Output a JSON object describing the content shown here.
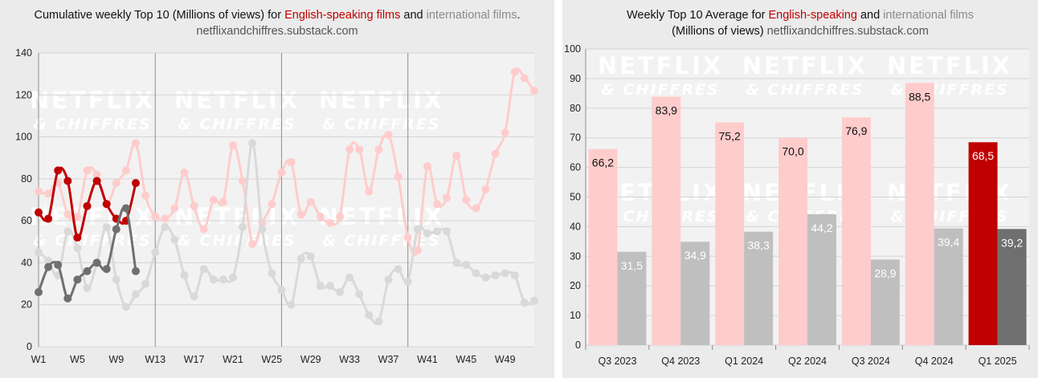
{
  "colors": {
    "english_light": "#ffcccc",
    "english_dark": "#c00000",
    "intl_light": "#d9d9d9",
    "intl_dark": "#6f6f6f",
    "plot_bg": "#f2f2f2",
    "panel_bg": "#ebebeb"
  },
  "watermark": {
    "line1": "NETFLIX",
    "line2": "& CHIFFRES"
  },
  "left": {
    "title_prefix": "Cumulative weekly Top 10 (Millions of views) for ",
    "title_red": "English-speaking films",
    "title_and": " and ",
    "title_grey": "international films",
    "title_suffix": ".",
    "source": "netflixandchiffres.substack.com"
  },
  "right": {
    "title_prefix": "Weekly Top 10 Average for ",
    "title_red": "English-speaking",
    "title_and": " and ",
    "title_grey": "international films",
    "title_unit": "(Millions of views) ",
    "source": "netflixandchiffres.substack.com"
  },
  "chart_data": [
    {
      "type": "line",
      "x_tick_labels": [
        "W1",
        "W5",
        "W9",
        "W13",
        "W17",
        "W21",
        "W25",
        "W29",
        "W33",
        "W37",
        "W41",
        "W45",
        "W49"
      ],
      "x_tick_weeks": [
        1,
        5,
        9,
        13,
        17,
        21,
        25,
        29,
        33,
        37,
        41,
        45,
        49
      ],
      "xlim": [
        1,
        52
      ],
      "ylim": [
        0,
        140
      ],
      "y_ticks": [
        0,
        20,
        40,
        60,
        80,
        100,
        120,
        140
      ],
      "grid": true,
      "quarter_dividers_at_weeks": [
        13,
        26,
        39
      ],
      "series": [
        {
          "key": "english_2024",
          "style": "light_red",
          "x": [
            1,
            2,
            3,
            4,
            5,
            6,
            7,
            8,
            9,
            10,
            11,
            12,
            13,
            14,
            15,
            16,
            17,
            18,
            19,
            20,
            21,
            22,
            23,
            24,
            25,
            26,
            27,
            28,
            29,
            30,
            31,
            32,
            33,
            34,
            35,
            36,
            37,
            38,
            39,
            40,
            41,
            42,
            43,
            44,
            45,
            46,
            47,
            48,
            49,
            50,
            51,
            52
          ],
          "values": [
            74,
            73,
            78,
            63,
            62,
            84,
            82,
            68,
            78,
            84,
            97,
            72,
            62,
            61,
            66,
            83,
            67,
            56,
            70,
            69,
            96,
            79,
            49,
            59,
            68,
            83,
            88,
            63,
            69,
            62,
            59,
            62,
            94,
            94,
            74,
            94,
            101,
            81,
            52,
            46,
            86,
            68,
            71,
            91,
            70,
            66,
            75,
            92,
            102,
            131,
            128,
            122
          ]
        },
        {
          "key": "intl_2024",
          "style": "light_grey",
          "x": [
            1,
            2,
            3,
            4,
            5,
            6,
            7,
            8,
            9,
            10,
            11,
            12,
            13,
            14,
            15,
            16,
            17,
            18,
            19,
            20,
            21,
            22,
            23,
            24,
            25,
            26,
            27,
            28,
            29,
            30,
            31,
            32,
            33,
            34,
            35,
            36,
            37,
            38,
            39,
            40,
            41,
            42,
            43,
            44,
            45,
            46,
            47,
            48,
            49,
            50,
            51,
            52
          ],
          "values": [
            45,
            41,
            34,
            55,
            47,
            28,
            40,
            57,
            32,
            19,
            25,
            30,
            45,
            57,
            51,
            34,
            24,
            37,
            32,
            32,
            33,
            57,
            97,
            56,
            35,
            27,
            20,
            42,
            43,
            29,
            29,
            26,
            33,
            25,
            15,
            12,
            32,
            37,
            31,
            56,
            54,
            55,
            55,
            40,
            39,
            35,
            33,
            34,
            35,
            34,
            21,
            22
          ]
        },
        {
          "key": "english_2025",
          "style": "dark_red",
          "x": [
            1,
            2,
            3,
            4,
            5,
            6,
            7,
            8,
            9,
            10,
            11
          ],
          "values": [
            64,
            61,
            84,
            79,
            52,
            67,
            79,
            68,
            61,
            60,
            78
          ]
        },
        {
          "key": "intl_2025",
          "style": "dark_grey",
          "x": [
            1,
            2,
            3,
            4,
            5,
            6,
            7,
            8,
            9,
            10,
            11
          ],
          "values": [
            26,
            38,
            39,
            23,
            32,
            36,
            40,
            37,
            56,
            66,
            36
          ]
        }
      ]
    },
    {
      "type": "bar",
      "categories": [
        "Q3 2023",
        "Q4 2023",
        "Q1 2024",
        "Q2 2024",
        "Q3 2024",
        "Q4 2024",
        "Q1 2025"
      ],
      "ylim": [
        0,
        100
      ],
      "y_ticks": [
        0,
        10,
        20,
        30,
        40,
        50,
        60,
        70,
        80,
        90,
        100
      ],
      "grid": true,
      "series": [
        {
          "key": "english",
          "values": [
            66.2,
            83.9,
            75.2,
            70.0,
            76.9,
            88.5,
            68.5
          ],
          "labels": [
            "66,2",
            "83,9",
            "75,2",
            "70,0",
            "76,9",
            "88,5",
            "68,5"
          ]
        },
        {
          "key": "international",
          "values": [
            31.5,
            34.9,
            38.3,
            44.2,
            28.9,
            39.4,
            39.2
          ],
          "labels": [
            "31,5",
            "34,9",
            "38,3",
            "44,2",
            "28,9",
            "39,4",
            "39,2"
          ]
        }
      ],
      "highlight_category": "Q1 2025"
    }
  ]
}
